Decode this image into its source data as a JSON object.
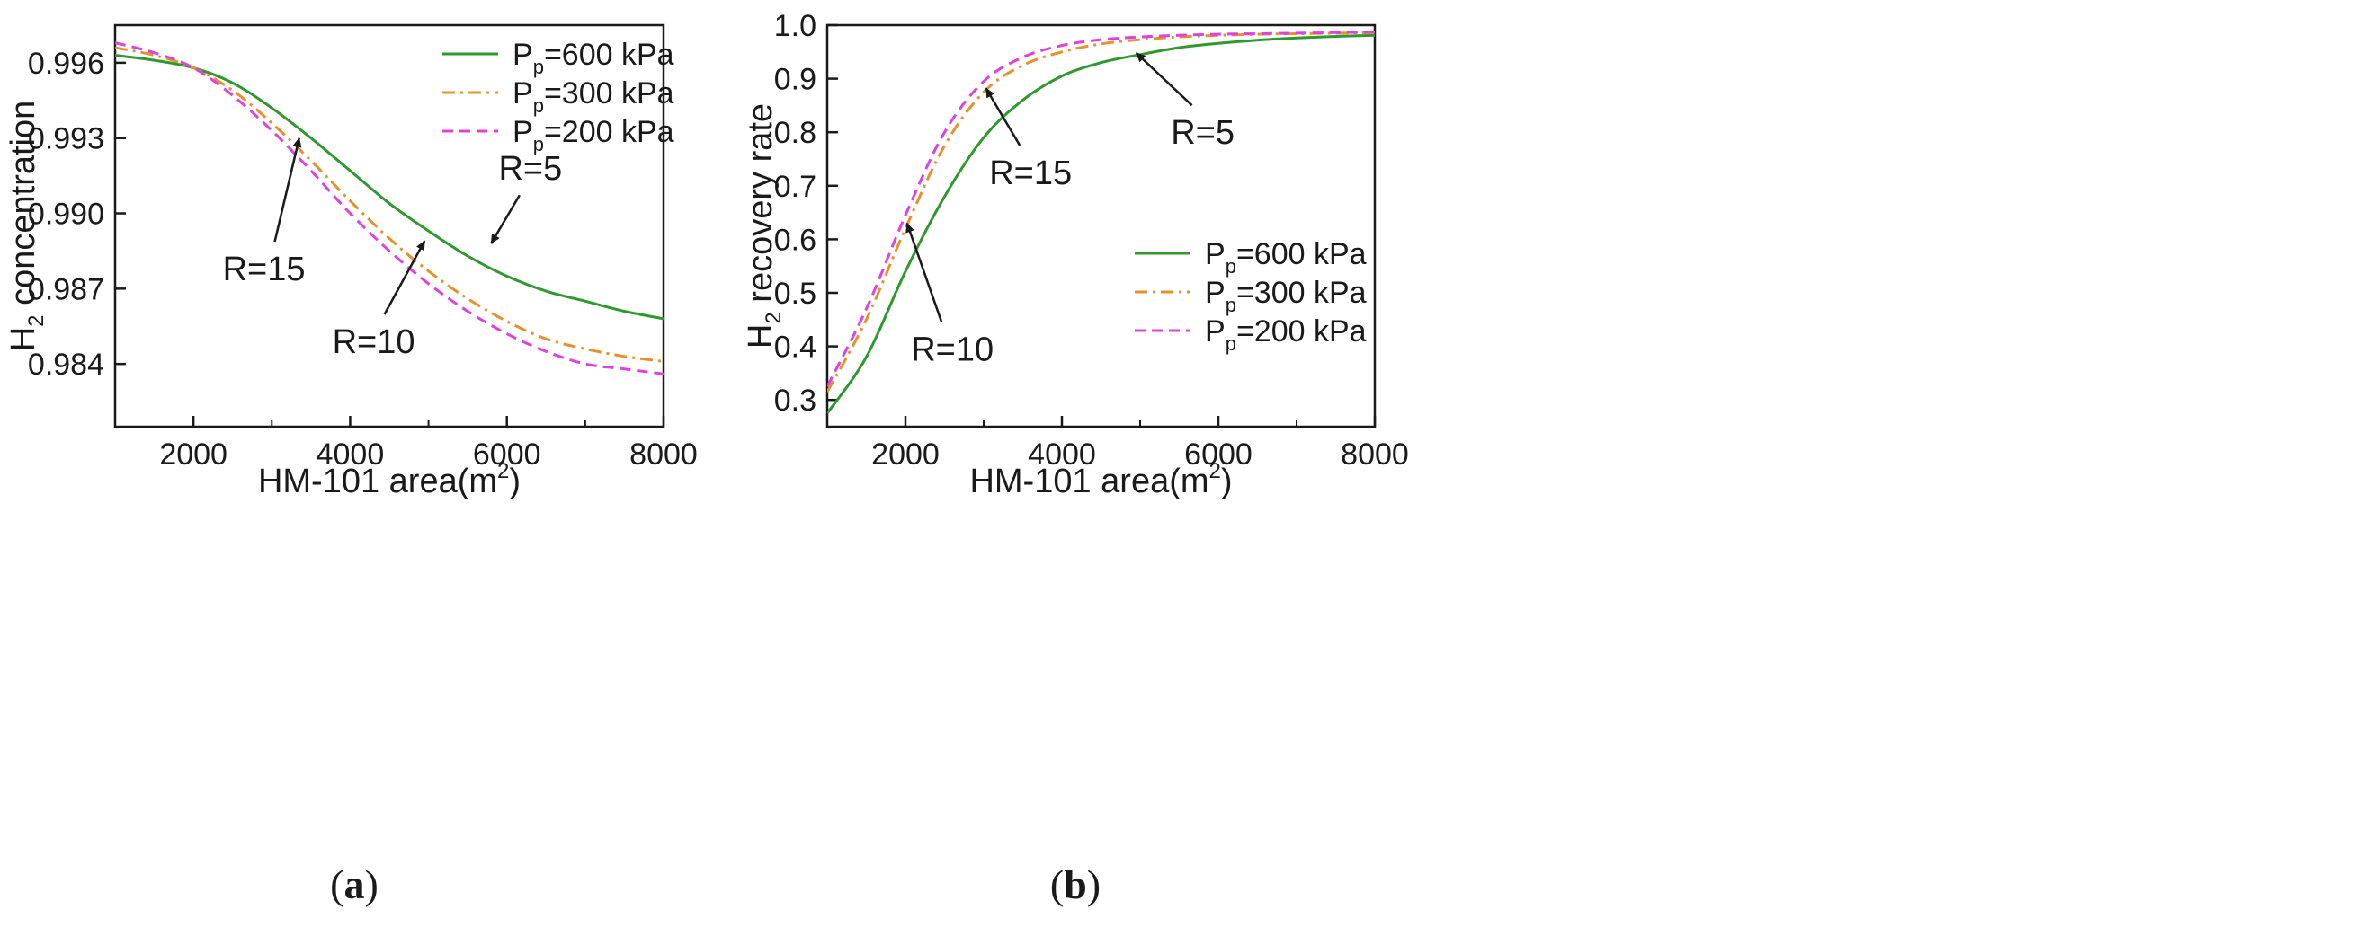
{
  "chart_data": [
    {
      "type": "line",
      "panel_label": "a",
      "xlabel": "HM-101 area(m2)",
      "ylabel": "H2 concentration",
      "xlim": [
        1000,
        8000
      ],
      "ylim": [
        0.9815,
        0.9975
      ],
      "xticks": [
        2000,
        4000,
        6000,
        8000
      ],
      "yticks": [
        0.984,
        0.987,
        0.99,
        0.993,
        0.996
      ],
      "ytick_labels": [
        "0.984",
        "0.987",
        "0.990",
        "0.993",
        "0.996"
      ],
      "legend_position": "top-right",
      "series": [
        {
          "name": "Pp=600 kPa",
          "color": "#2e9a2e",
          "dash": "solid",
          "x": [
            1000,
            1500,
            2000,
            2500,
            3000,
            3500,
            4000,
            4500,
            5000,
            5500,
            6000,
            6500,
            7000,
            7500,
            8000
          ],
          "y": [
            0.9963,
            0.9961,
            0.9958,
            0.9952,
            0.9942,
            0.993,
            0.9917,
            0.9904,
            0.9893,
            0.9883,
            0.9875,
            0.9869,
            0.9865,
            0.9861,
            0.9858
          ]
        },
        {
          "name": "Pp=300 kPa",
          "color": "#e8902a",
          "dash": "dashdot",
          "x": [
            1000,
            1500,
            2000,
            2500,
            3000,
            3500,
            4000,
            4500,
            5000,
            5500,
            6000,
            6500,
            7000,
            7500,
            8000
          ],
          "y": [
            0.9966,
            0.9963,
            0.9958,
            0.9949,
            0.9936,
            0.9921,
            0.9905,
            0.989,
            0.9877,
            0.9866,
            0.9857,
            0.985,
            0.9846,
            0.9843,
            0.9841
          ]
        },
        {
          "name": "Pp=200 kPa",
          "color": "#e040e0",
          "dash": "dashed",
          "x": [
            1000,
            1500,
            2000,
            2500,
            3000,
            3500,
            4000,
            4500,
            5000,
            5500,
            6000,
            6500,
            7000,
            7500,
            8000
          ],
          "y": [
            0.9968,
            0.9964,
            0.9958,
            0.9947,
            0.9933,
            0.9917,
            0.99,
            0.9885,
            0.9872,
            0.9861,
            0.9852,
            0.9845,
            0.984,
            0.9838,
            0.9836
          ]
        }
      ],
      "legend": [
        "Pp=600 kPa",
        "Pp=300 kPa",
        "Pp=200 kPa"
      ],
      "annotations": [
        {
          "text": "R=5",
          "text_at": [
            6300,
            0.9918
          ],
          "arrow_to": [
            5800,
            0.9888
          ]
        },
        {
          "text": "R=15",
          "text_at": [
            2900,
            0.9878
          ],
          "arrow_to": [
            3350,
            0.993
          ]
        },
        {
          "text": "R=10",
          "text_at": [
            4300,
            0.9849
          ],
          "arrow_to": [
            4950,
            0.9889
          ]
        }
      ]
    },
    {
      "type": "line",
      "panel_label": "b",
      "xlabel": "HM-101 area(m2)",
      "ylabel": "H2 recovery rate",
      "xlim": [
        1000,
        8000
      ],
      "ylim": [
        0.25,
        1.0
      ],
      "xticks": [
        2000,
        4000,
        6000,
        8000
      ],
      "yticks": [
        0.3,
        0.4,
        0.5,
        0.6,
        0.7,
        0.8,
        0.9,
        1.0
      ],
      "ytick_labels": [
        "0.3",
        "0.4",
        "0.5",
        "0.6",
        "0.7",
        "0.8",
        "0.9",
        "1.0"
      ],
      "legend_position": "lower-right",
      "series": [
        {
          "name": "Pp=600 kPa",
          "color": "#2e9a2e",
          "dash": "solid",
          "x": [
            1000,
            1500,
            2000,
            2500,
            3000,
            3500,
            4000,
            4500,
            5000,
            5500,
            6000,
            6500,
            7000,
            7500,
            8000
          ],
          "y": [
            0.275,
            0.38,
            0.54,
            0.68,
            0.79,
            0.86,
            0.905,
            0.93,
            0.945,
            0.958,
            0.966,
            0.972,
            0.976,
            0.979,
            0.981
          ]
        },
        {
          "name": "Pp=300 kPa",
          "color": "#e8902a",
          "dash": "dashdot",
          "x": [
            1000,
            1500,
            2000,
            2500,
            3000,
            3500,
            4000,
            4500,
            5000,
            5500,
            6000,
            6500,
            7000,
            7500,
            8000
          ],
          "y": [
            0.315,
            0.45,
            0.62,
            0.775,
            0.875,
            0.925,
            0.95,
            0.965,
            0.973,
            0.978,
            0.981,
            0.983,
            0.984,
            0.985,
            0.986
          ]
        },
        {
          "name": "Pp=200 kPa",
          "color": "#e040e0",
          "dash": "dashed",
          "x": [
            1000,
            1500,
            2000,
            2500,
            3000,
            3500,
            4000,
            4500,
            5000,
            5500,
            6000,
            6500,
            7000,
            7500,
            8000
          ],
          "y": [
            0.325,
            0.47,
            0.645,
            0.8,
            0.895,
            0.94,
            0.962,
            0.973,
            0.978,
            0.981,
            0.983,
            0.984,
            0.985,
            0.986,
            0.987
          ]
        }
      ],
      "legend": [
        "Pp=600 kPa",
        "Pp=300 kPa",
        "Pp=200 kPa"
      ],
      "annotations": [
        {
          "text": "R=5",
          "text_at": [
            5800,
            0.8
          ],
          "arrow_to": [
            4950,
            0.948
          ]
        },
        {
          "text": "R=15",
          "text_at": [
            3600,
            0.725
          ],
          "arrow_to": [
            3030,
            0.882
          ]
        },
        {
          "text": "R=10",
          "text_at": [
            2600,
            0.395
          ],
          "arrow_to": [
            2020,
            0.63
          ]
        }
      ]
    }
  ]
}
